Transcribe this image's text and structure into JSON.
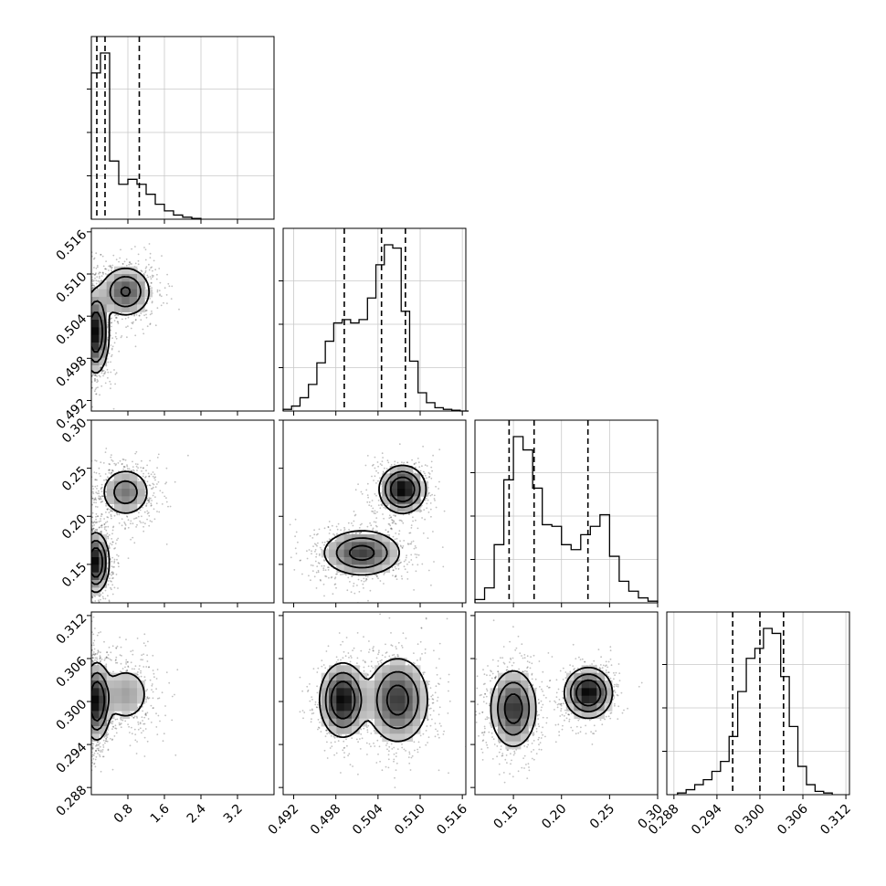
{
  "chart_data": {
    "type": "corner",
    "title": "",
    "grid": true,
    "parameters": [
      {
        "key": "p1",
        "range": [
          0.0,
          4.0
        ],
        "ticks": [
          0.8,
          1.6,
          2.4,
          3.2
        ],
        "tick_labels": [
          "0.8",
          "1.6",
          "2.4",
          "3.2"
        ],
        "quantiles": [
          0.12,
          0.3,
          1.05
        ],
        "hist_bins": [
          0.0,
          0.2,
          0.4,
          0.6,
          0.8,
          1.0,
          1.2,
          1.4,
          1.6,
          1.8,
          2.0,
          2.2,
          2.4
        ],
        "hist_values": [
          0.88,
          1.0,
          0.35,
          0.21,
          0.24,
          0.21,
          0.15,
          0.09,
          0.05,
          0.025,
          0.012,
          0.005,
          0.002
        ]
      },
      {
        "key": "p2",
        "range": [
          0.4905,
          0.5165
        ],
        "ticks": [
          0.492,
          0.498,
          0.504,
          0.51,
          0.516
        ],
        "tick_labels": [
          "0.492",
          "0.498",
          "0.504",
          "0.510",
          "0.516"
        ],
        "quantiles": [
          0.4992,
          0.5045,
          0.5079
        ],
        "hist_bins": [
          0.4905,
          0.4917,
          0.4929,
          0.4941,
          0.4953,
          0.4965,
          0.4977,
          0.4989,
          0.5001,
          0.5013,
          0.5025,
          0.5037,
          0.5049,
          0.5061,
          0.5073,
          0.5085,
          0.5097,
          0.5109,
          0.5121,
          0.5133,
          0.5145,
          0.5157,
          0.5169
        ],
        "hist_values": [
          0.01,
          0.03,
          0.08,
          0.16,
          0.29,
          0.42,
          0.53,
          0.55,
          0.53,
          0.55,
          0.68,
          0.88,
          1.0,
          0.98,
          0.6,
          0.3,
          0.11,
          0.05,
          0.02,
          0.01,
          0.005,
          0.0
        ]
      },
      {
        "key": "p3",
        "range": [
          0.11,
          0.3
        ],
        "ticks": [
          0.15,
          0.2,
          0.25,
          0.3
        ],
        "tick_labels": [
          "0.15",
          "0.20",
          "0.25",
          "0.30"
        ],
        "quantiles": [
          0.1455,
          0.1715,
          0.2275
        ],
        "hist_bins": [
          0.11,
          0.12,
          0.13,
          0.14,
          0.15,
          0.16,
          0.17,
          0.18,
          0.19,
          0.2,
          0.21,
          0.22,
          0.23,
          0.24,
          0.25,
          0.26,
          0.27,
          0.28,
          0.29,
          0.3
        ],
        "hist_values": [
          0.02,
          0.09,
          0.35,
          0.74,
          1.0,
          0.92,
          0.69,
          0.47,
          0.46,
          0.35,
          0.32,
          0.41,
          0.46,
          0.53,
          0.28,
          0.13,
          0.07,
          0.03,
          0.01
        ]
      },
      {
        "key": "p4",
        "range": [
          0.287,
          0.3125
        ],
        "ticks": [
          0.288,
          0.294,
          0.3,
          0.306,
          0.312
        ],
        "tick_labels": [
          "0.288",
          "0.294",
          "0.300",
          "0.306",
          "0.312"
        ],
        "quantiles": [
          0.2962,
          0.3,
          0.3033
        ],
        "hist_bins": [
          0.2885,
          0.2897,
          0.2909,
          0.2921,
          0.2933,
          0.2945,
          0.2957,
          0.2969,
          0.2981,
          0.2993,
          0.3005,
          0.3017,
          0.3029,
          0.3041,
          0.3053,
          0.3065,
          0.3077,
          0.3089,
          0.3101
        ],
        "hist_values": [
          0.01,
          0.03,
          0.06,
          0.09,
          0.14,
          0.2,
          0.35,
          0.62,
          0.82,
          0.88,
          1.0,
          0.97,
          0.71,
          0.41,
          0.17,
          0.06,
          0.02,
          0.01
        ]
      }
    ],
    "joint_modes": {
      "p1-p2": [
        {
          "mean": [
            0.1,
            0.5017
          ],
          "sd": [
            0.14,
            0.0028
          ],
          "w": 0.55
        },
        {
          "mean": [
            0.75,
            0.5075
          ],
          "sd": [
            0.28,
            0.0018
          ],
          "w": 0.45
        }
      ],
      "p1-p3": [
        {
          "mean": [
            0.1,
            0.152
          ],
          "sd": [
            0.14,
            0.015
          ],
          "w": 0.55
        },
        {
          "mean": [
            0.75,
            0.225
          ],
          "sd": [
            0.28,
            0.013
          ],
          "w": 0.45
        }
      ],
      "p1-p4": [
        {
          "mean": [
            0.12,
            0.3
          ],
          "sd": [
            0.14,
            0.0026
          ],
          "w": 0.65
        },
        {
          "mean": [
            0.75,
            0.301
          ],
          "sd": [
            0.3,
            0.0022
          ],
          "w": 0.35
        }
      ],
      "p2-p3": [
        {
          "mean": [
            0.5017,
            0.162
          ],
          "sd": [
            0.0028,
            0.012
          ],
          "w": 0.55
        },
        {
          "mean": [
            0.5075,
            0.228
          ],
          "sd": [
            0.0016,
            0.012
          ],
          "w": 0.45
        }
      ],
      "p2-p4": [
        {
          "mean": [
            0.499,
            0.3002
          ],
          "sd": [
            0.0016,
            0.0025
          ],
          "w": 0.45
        },
        {
          "mean": [
            0.5068,
            0.3002
          ],
          "sd": [
            0.0022,
            0.003
          ],
          "w": 0.55
        }
      ],
      "p3-p4": [
        {
          "mean": [
            0.15,
            0.299
          ],
          "sd": [
            0.012,
            0.0027
          ],
          "w": 0.55
        },
        {
          "mean": [
            0.228,
            0.3012
          ],
          "sd": [
            0.012,
            0.0017
          ],
          "w": 0.45
        }
      ]
    }
  }
}
